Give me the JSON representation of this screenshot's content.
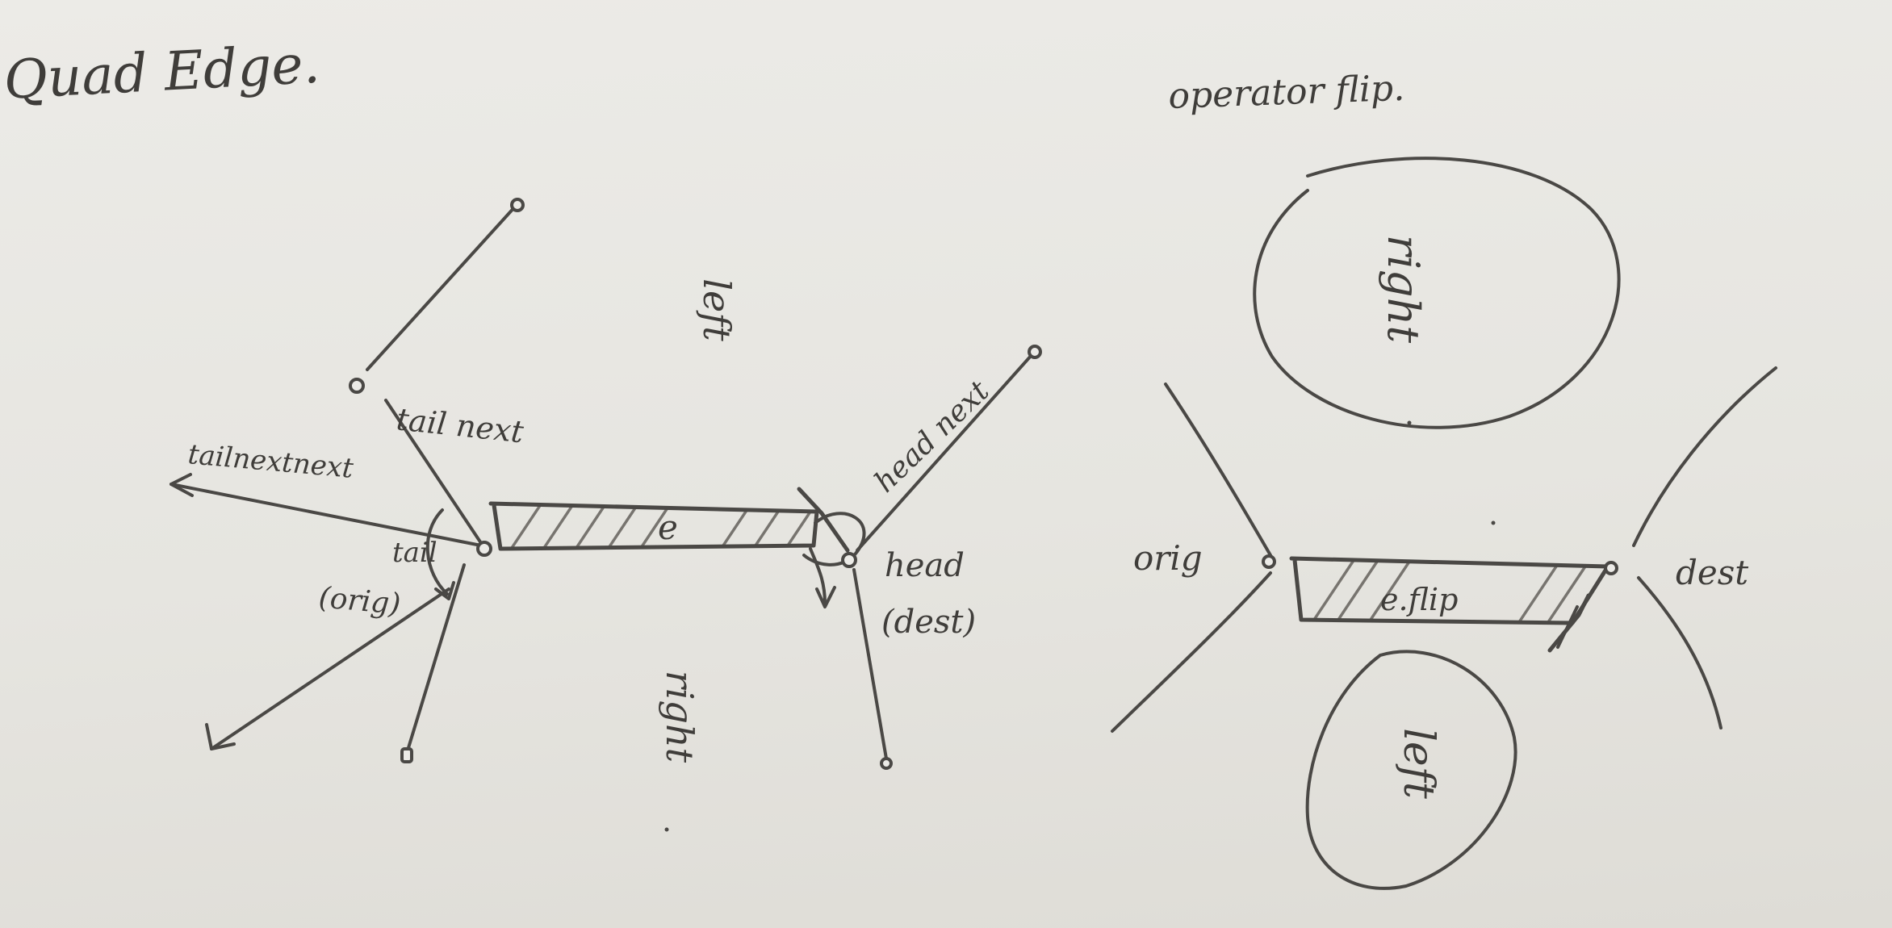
{
  "left_sketch": {
    "title": "Quad Edge.",
    "edge_label": "e",
    "left_face": "left",
    "right_face": "right",
    "tail_next": "tail next",
    "tail_next_next": "tailnextnext",
    "head_next": "head next",
    "tail": "tail",
    "orig": "(orig)",
    "head": "head",
    "dest": "(dest)"
  },
  "right_sketch": {
    "title": "operator flip.",
    "edge_label": "e.flip",
    "orig": "orig",
    "dest": "dest",
    "top_face": "right",
    "bottom_face": "left"
  }
}
